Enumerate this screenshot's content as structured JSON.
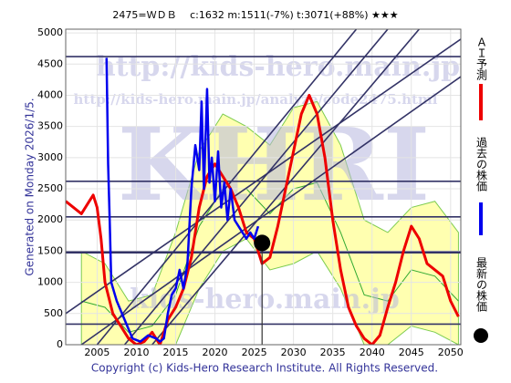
{
  "chart_data": {
    "type": "line",
    "title": "2475=ＷＤＢ　 c:1632  m:1511(-7%)  t:3071(+88%)  ★★★",
    "side_label": "Generated on Monday 2026/1/5.",
    "footer": "Copyright (c) Kids-Hero Research Institute. All Rights Reserved.",
    "watermarks": [
      "http://kids-hero.main.jp/",
      "http://kids-hero.main.jp/analyze/code2475.html",
      "KHRI",
      "kids-hero.main.jp"
    ],
    "xlim": [
      2001,
      2051.3
    ],
    "ylim": [
      0,
      5060
    ],
    "xticks": [
      2005,
      2010,
      2015,
      2020,
      2025,
      2030,
      2035,
      2040,
      2045,
      2050
    ],
    "yticks": [
      0,
      500,
      1000,
      1500,
      2000,
      2500,
      3000,
      3500,
      4000,
      4500,
      5000
    ],
    "hlines": {
      "color": "#333366",
      "values": [
        4620,
        2620,
        2050,
        1480,
        330
      ]
    },
    "trendlines": {
      "color": "#333366",
      "lines": [
        [
          2001,
          500,
          2051.3,
          4900
        ],
        [
          2003,
          0,
          2051.3,
          4300
        ],
        [
          2005,
          0,
          2038,
          5060
        ],
        [
          2008.5,
          0,
          2042,
          5060
        ],
        [
          2012,
          0,
          2046,
          5060
        ]
      ]
    },
    "band": {
      "color": "#ffffb0",
      "edge_color": "#7ccc50",
      "median_color": "#33aa33",
      "x": [
        2003,
        2006,
        2009,
        2012,
        2015,
        2018,
        2021,
        2024,
        2027,
        2030,
        2033,
        2036,
        2039,
        2042,
        2045,
        2048,
        2051
      ],
      "upper": [
        1500,
        1300,
        700,
        800,
        1800,
        3100,
        3700,
        3500,
        3200,
        3800,
        3900,
        3200,
        2000,
        1800,
        2200,
        2300,
        1800
      ],
      "lower": [
        0,
        0,
        0,
        0,
        0,
        900,
        1500,
        1700,
        1200,
        1300,
        1500,
        900,
        0,
        0,
        300,
        200,
        0
      ],
      "median": [
        700,
        600,
        200,
        300,
        800,
        1900,
        2500,
        2500,
        2100,
        2500,
        2600,
        1800,
        800,
        700,
        1200,
        1100,
        700
      ]
    },
    "series": [
      {
        "name": "ＡＩ予測",
        "color": "#ee0000",
        "width": 3,
        "x": [
          2001,
          2002,
          2003,
          2004,
          2004.5,
          2005,
          2005.5,
          2006,
          2007,
          2008,
          2009,
          2010,
          2011,
          2012,
          2013,
          2014,
          2015,
          2016,
          2017,
          2018,
          2019,
          2020,
          2021,
          2022,
          2023,
          2024,
          2025,
          2026,
          2027,
          2028,
          2029,
          2030,
          2031,
          2032,
          2033,
          2034,
          2035,
          2036,
          2037,
          2038,
          2039,
          2040,
          2041,
          2042,
          2043,
          2044,
          2045,
          2046,
          2047,
          2048,
          2049,
          2050,
          2051
        ],
        "values": [
          2300,
          2200,
          2100,
          2300,
          2400,
          2200,
          1700,
          1000,
          500,
          300,
          100,
          0,
          50,
          200,
          0,
          400,
          600,
          900,
          1400,
          2200,
          2700,
          2900,
          2700,
          2500,
          2200,
          1800,
          1700,
          1300,
          1400,
          1900,
          2500,
          3100,
          3700,
          4000,
          3700,
          3000,
          2000,
          1200,
          600,
          300,
          100,
          0,
          150,
          600,
          1000,
          1500,
          1900,
          1700,
          1300,
          1200,
          1100,
          700,
          450
        ]
      },
      {
        "name": "過去の株価",
        "color": "#0000ee",
        "width": 2.5,
        "x": [
          2006.2,
          2006.4,
          2006.6,
          2006.8,
          2007.5,
          2008.5,
          2009.5,
          2010.5,
          2011.5,
          2012.5,
          2013,
          2013.5,
          2014,
          2014.5,
          2015,
          2015.5,
          2016,
          2016.5,
          2017,
          2017.5,
          2018,
          2018.3,
          2018.6,
          2019,
          2019.3,
          2019.6,
          2020,
          2020.4,
          2020.8,
          2021.2,
          2021.6,
          2022,
          2022.5,
          2023,
          2023.5,
          2024,
          2024.5,
          2025,
          2025.5
        ],
        "values": [
          4600,
          2900,
          2000,
          1000,
          700,
          400,
          100,
          50,
          150,
          100,
          50,
          100,
          500,
          800,
          900,
          1200,
          900,
          1300,
          2500,
          3200,
          2800,
          3900,
          2500,
          4100,
          2600,
          3000,
          2300,
          3100,
          2200,
          2600,
          2000,
          2500,
          2000,
          1900,
          1800,
          1700,
          1800,
          1700,
          1900
        ]
      }
    ],
    "latest": {
      "name": "最新の株価",
      "x": 2026,
      "value": 1632,
      "color": "#000000"
    }
  }
}
